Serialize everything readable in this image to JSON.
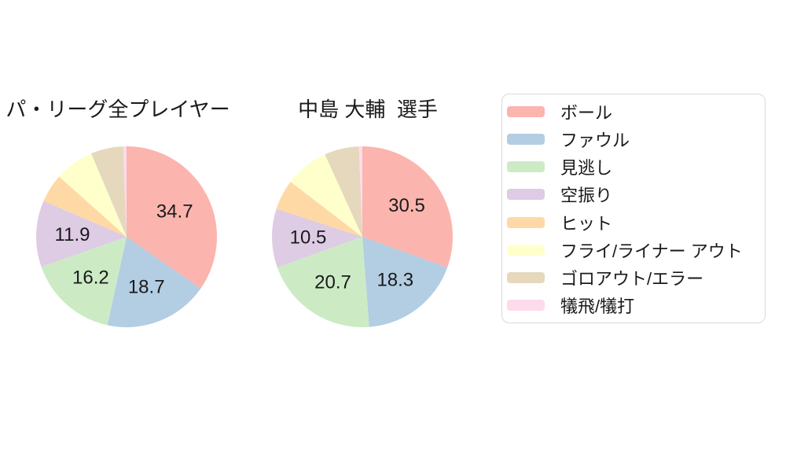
{
  "text_color": "#1a1a1a",
  "background_color": "#ffffff",
  "legend_border_color": "#d9d9d9",
  "chart_data": [
    {
      "type": "pie",
      "title": "パ・リーグ全プレイヤー",
      "categories": [
        "ボール",
        "ファウル",
        "見逃し",
        "空振り",
        "ヒット",
        "フライ/ライナー アウト",
        "ゴロアウト/エラー",
        "犠飛/犠打"
      ],
      "values": [
        34.7,
        18.7,
        16.2,
        11.9,
        5.1,
        7.0,
        5.8,
        0.6
      ],
      "value_labels": [
        "34.7",
        "18.7",
        "16.2",
        "11.9",
        "",
        "",
        "",
        ""
      ],
      "colors": [
        "#fbb4ae",
        "#b3cde3",
        "#ccebc5",
        "#decbe4",
        "#fed9a6",
        "#ffffcc",
        "#e5d8bd",
        "#fddaec"
      ],
      "start_angle": "12-oclock",
      "direction": "clockwise"
    },
    {
      "type": "pie",
      "title": "中島 大輔  選手",
      "categories": [
        "ボール",
        "ファウル",
        "見逃し",
        "空振り",
        "ヒット",
        "フライ/ライナー アウト",
        "ゴロアウト/エラー",
        "犠飛/犠打"
      ],
      "values": [
        30.5,
        18.3,
        20.7,
        10.5,
        5.4,
        7.8,
        6.2,
        0.6
      ],
      "value_labels": [
        "30.5",
        "18.3",
        "20.7",
        "10.5",
        "",
        "",
        "",
        ""
      ],
      "colors": [
        "#fbb4ae",
        "#b3cde3",
        "#ccebc5",
        "#decbe4",
        "#fed9a6",
        "#ffffcc",
        "#e5d8bd",
        "#fddaec"
      ],
      "start_angle": "12-oclock",
      "direction": "clockwise"
    }
  ],
  "legend": {
    "position": "right",
    "items": [
      {
        "label": "ボール",
        "color": "#fbb4ae"
      },
      {
        "label": "ファウル",
        "color": "#b3cde3"
      },
      {
        "label": "見逃し",
        "color": "#ccebc5"
      },
      {
        "label": "空振り",
        "color": "#decbe4"
      },
      {
        "label": "ヒット",
        "color": "#fed9a6"
      },
      {
        "label": "フライ/ライナー アウト",
        "color": "#ffffcc"
      },
      {
        "label": "ゴロアウト/エラー",
        "color": "#e5d8bd"
      },
      {
        "label": "犠飛/犠打",
        "color": "#fddaec"
      }
    ]
  }
}
